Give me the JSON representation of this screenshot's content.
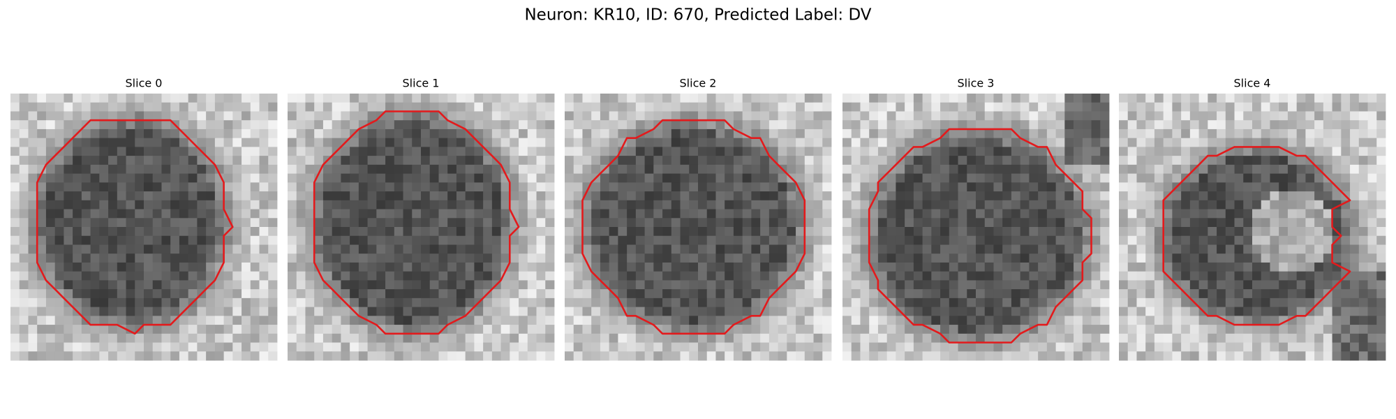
{
  "title": "Neuron: KR10, ID: 670, Predicted Label: DV",
  "panels": [
    {
      "title": "Slice 0"
    },
    {
      "title": "Slice 1"
    },
    {
      "title": "Slice 2"
    },
    {
      "title": "Slice 3"
    },
    {
      "title": "Slice 4"
    }
  ]
}
